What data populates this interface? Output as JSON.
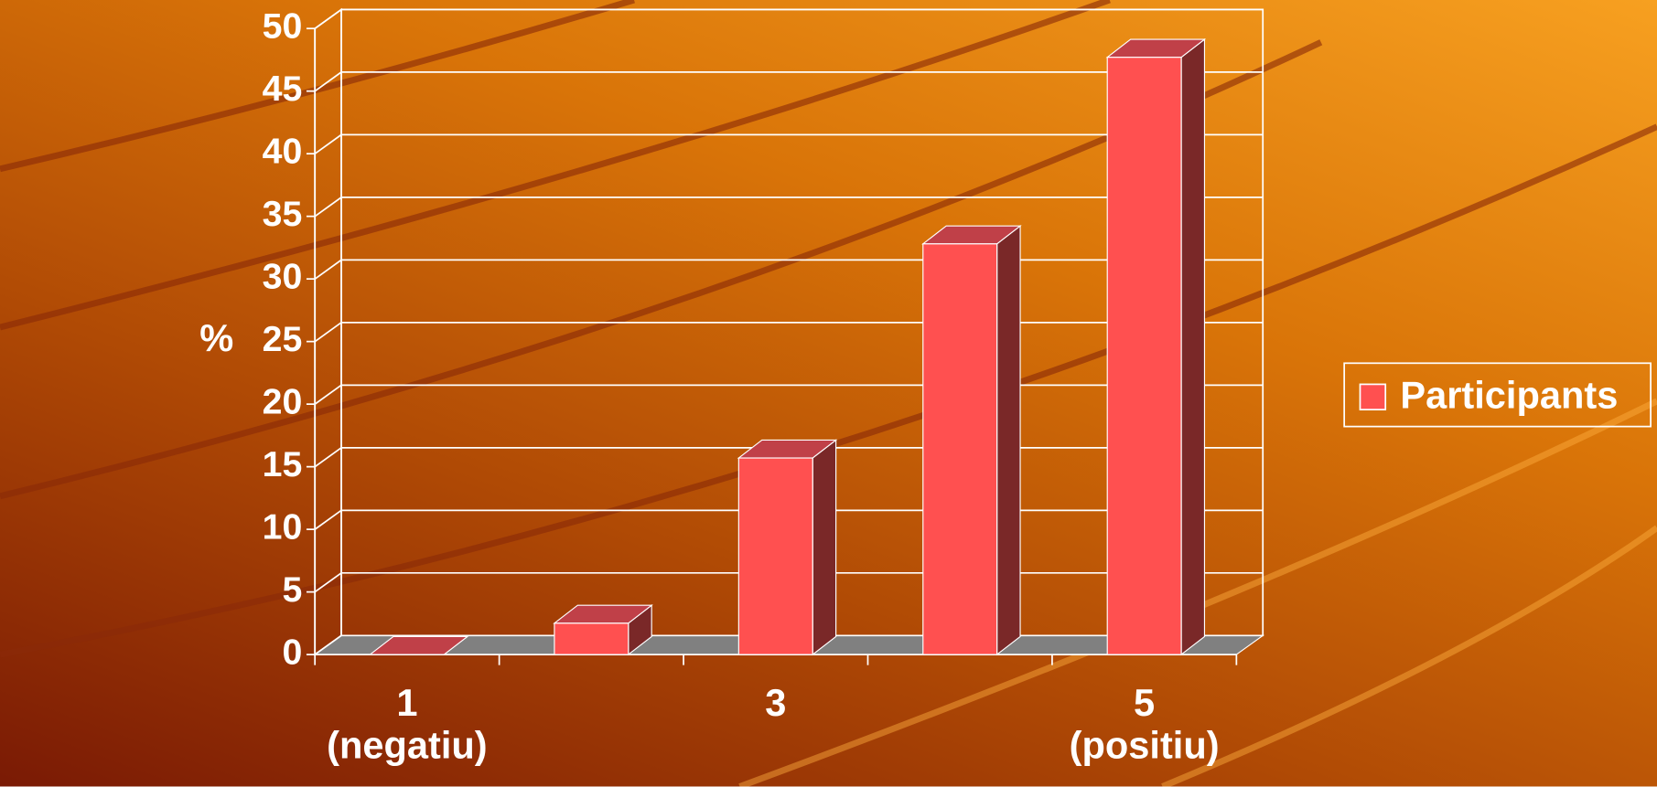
{
  "chart_data": {
    "type": "bar3d",
    "categories": [
      "1\n(negatiu)",
      null,
      "3",
      null,
      "5\n(positiu)"
    ],
    "series": [
      {
        "name": "Participants",
        "color": "#ff5050",
        "values": [
          0,
          2.5,
          15.7,
          32.8,
          47.7
        ]
      }
    ],
    "ylabel": "%",
    "ylim": [
      0,
      50
    ],
    "yticks": [
      0,
      5,
      10,
      15,
      20,
      25,
      30,
      35,
      40,
      45,
      50
    ],
    "grid": true,
    "legend": "right"
  }
}
